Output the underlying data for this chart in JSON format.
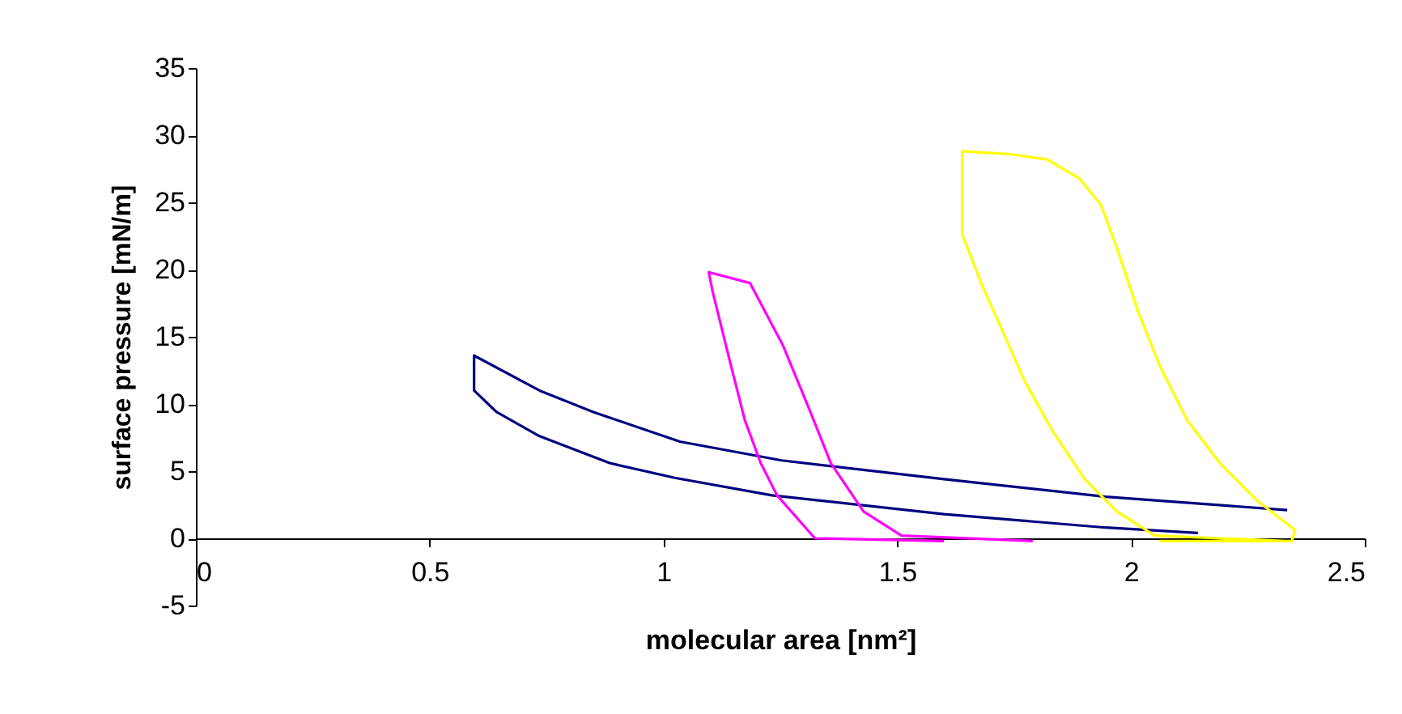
{
  "chart_data": {
    "type": "line",
    "xlabel": "molecular area [nm²]",
    "ylabel": "surface pressure [mN/m]",
    "xlim": [
      0,
      2.5
    ],
    "xticks": [
      0,
      0.5,
      1,
      1.5,
      2,
      2.5
    ],
    "ylim": [
      -5,
      35
    ],
    "yticks": [
      -5,
      0,
      5,
      10,
      15,
      20,
      25,
      30,
      35
    ],
    "grid": false,
    "legend": false,
    "marker": "none",
    "line_style": "solid",
    "series": [
      {
        "color": "#000080",
        "x": [
          2.334,
          1.946,
          1.6,
          1.253,
          1.035,
          0.85,
          0.735,
          0.595,
          0.595,
          0.643,
          0.735,
          0.885,
          1.024,
          1.232,
          1.6,
          1.946,
          2.143
        ],
        "values": [
          2.1,
          3.1,
          4.4,
          5.8,
          7.2,
          9.4,
          11.0,
          13.6,
          11.0,
          9.4,
          7.6,
          5.6,
          4.5,
          3.2,
          1.8,
          0.8,
          0.4
        ]
      },
      {
        "color": "#ff00ff",
        "x": [
          1.79,
          1.509,
          1.428,
          1.358,
          1.312,
          1.255,
          1.185,
          1.097,
          1.105,
          1.139,
          1.174,
          1.208,
          1.243,
          1.324,
          1.6
        ],
        "values": [
          -0.2,
          0.2,
          2.0,
          5.6,
          9.6,
          14.4,
          19.0,
          19.8,
          18.4,
          13.6,
          8.8,
          5.6,
          3.2,
          0,
          -0.2
        ]
      },
      {
        "color": "#ffff00",
        "x": [
          2.33,
          2.051,
          1.97,
          1.901,
          1.832,
          1.774,
          1.728,
          1.682,
          1.639,
          1.639,
          1.739,
          1.82,
          1.889,
          1.936,
          1.97,
          2.016,
          2.062,
          2.12,
          2.19,
          2.27,
          2.351,
          2.344,
          2.062
        ],
        "values": [
          -0.2,
          0.2,
          2.0,
          4.4,
          8.0,
          11.6,
          15.2,
          18.8,
          22.6,
          28.8,
          28.6,
          28.2,
          26.8,
          24.8,
          21.6,
          16.8,
          12.8,
          8.8,
          5.6,
          2.8,
          0.6,
          -0.2,
          -0.2
        ]
      }
    ]
  }
}
